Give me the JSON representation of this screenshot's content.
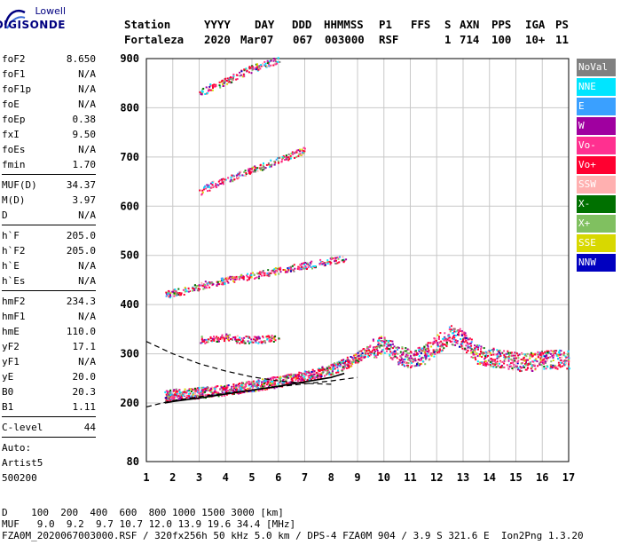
{
  "logo": {
    "line1": "Lowell",
    "line2": "DIGISONDE"
  },
  "header": {
    "labels": [
      "Station",
      "YYYY",
      "DAY",
      "DDD",
      "HHMMSS",
      "P1",
      "FFS",
      "S",
      "AXN",
      "PPS",
      "IGA",
      "PS"
    ],
    "values": [
      "Fortaleza",
      "2020",
      "Mar07",
      "067",
      "003000",
      "RSF",
      "1",
      "714",
      "100",
      "10+",
      "11"
    ]
  },
  "params": {
    "group1": [
      {
        "label": "foF2",
        "value": "8.650"
      },
      {
        "label": "foF1",
        "value": "N/A"
      },
      {
        "label": "foF1p",
        "value": "N/A"
      },
      {
        "label": "foE",
        "value": "N/A"
      },
      {
        "label": "foEp",
        "value": "0.38"
      },
      {
        "label": "fxI",
        "value": "9.50"
      },
      {
        "label": "foEs",
        "value": "N/A"
      },
      {
        "label": "fmin",
        "value": "1.70"
      }
    ],
    "group2": [
      {
        "label": "MUF(D)",
        "value": "34.37"
      },
      {
        "label": "M(D)",
        "value": "3.97"
      },
      {
        "label": "D",
        "value": "N/A"
      }
    ],
    "group3": [
      {
        "label": "h`F",
        "value": "205.0"
      },
      {
        "label": "h`F2",
        "value": "205.0"
      },
      {
        "label": "h`E",
        "value": "N/A"
      },
      {
        "label": "h`Es",
        "value": "N/A"
      }
    ],
    "group4": [
      {
        "label": "hmF2",
        "value": "234.3"
      },
      {
        "label": "hmF1",
        "value": "N/A"
      },
      {
        "label": "hmE",
        "value": "110.0"
      },
      {
        "label": "yF2",
        "value": "17.1"
      },
      {
        "label": "yF1",
        "value": "N/A"
      },
      {
        "label": "yE",
        "value": "20.0"
      },
      {
        "label": "B0",
        "value": "20.3"
      },
      {
        "label": "B1",
        "value": "1.11"
      }
    ],
    "clevel": {
      "label": "C-level",
      "value": "44"
    },
    "auto": [
      "Auto:",
      "Artist5",
      "500200"
    ]
  },
  "legend": [
    {
      "label": "NoVal",
      "color": "#808080"
    },
    {
      "label": "NNE",
      "color": "#00e5ff"
    },
    {
      "label": "E",
      "color": "#3aa0ff"
    },
    {
      "label": "W",
      "color": "#a000a0"
    },
    {
      "label": "Vo-",
      "color": "#ff3090"
    },
    {
      "label": "Vo+",
      "color": "#ff0030"
    },
    {
      "label": "SSW",
      "color": "#ffb0b0"
    },
    {
      "label": "X-",
      "color": "#007000"
    },
    {
      "label": "X+",
      "color": "#80c060"
    },
    {
      "label": "SSE",
      "color": "#d8d800"
    },
    {
      "label": "NNW",
      "color": "#0000c0"
    }
  ],
  "chart_data": {
    "type": "scatter",
    "xlim": [
      1,
      17
    ],
    "ylim": [
      80,
      900
    ],
    "x_ticks": [
      "1",
      "2",
      "3",
      "4",
      "5",
      "6",
      "7",
      "8",
      "9",
      "10",
      "11",
      "12",
      "13",
      "14",
      "15",
      "16",
      "17"
    ],
    "y_ticks": [
      "80",
      "200",
      "300",
      "400",
      "500",
      "600",
      "700",
      "800",
      "900"
    ],
    "grid": true,
    "series": [
      {
        "name": "F",
        "points": [
          [
            1.7,
            215
          ],
          [
            2.0,
            218
          ],
          [
            2.5,
            220
          ],
          [
            3.0,
            222
          ],
          [
            3.5,
            225
          ],
          [
            4.0,
            228
          ],
          [
            4.5,
            232
          ],
          [
            5.0,
            236
          ],
          [
            5.5,
            240
          ],
          [
            6.0,
            245
          ],
          [
            6.5,
            250
          ],
          [
            7.0,
            255
          ],
          [
            7.5,
            262
          ],
          [
            8.0,
            270
          ],
          [
            8.5,
            280
          ],
          [
            9.0,
            295
          ],
          [
            9.5,
            310
          ],
          [
            10.0,
            320
          ],
          [
            10.5,
            300
          ],
          [
            11.0,
            290
          ],
          [
            11.5,
            300
          ],
          [
            12.0,
            320
          ],
          [
            12.5,
            340
          ],
          [
            13.0,
            330
          ],
          [
            13.5,
            300
          ],
          [
            14.0,
            295
          ],
          [
            14.5,
            290
          ],
          [
            15.0,
            285
          ],
          [
            15.5,
            285
          ],
          [
            16.0,
            290
          ],
          [
            16.5,
            290
          ],
          [
            17.0,
            290
          ]
        ]
      },
      {
        "name": "2F",
        "points": [
          [
            1.7,
            420
          ],
          [
            2.0,
            425
          ],
          [
            2.5,
            430
          ],
          [
            3.0,
            438
          ],
          [
            3.5,
            445
          ],
          [
            4.0,
            450
          ],
          [
            4.5,
            455
          ],
          [
            5.0,
            460
          ],
          [
            5.5,
            465
          ],
          [
            6.0,
            470
          ],
          [
            6.5,
            475
          ],
          [
            7.0,
            480
          ],
          [
            7.5,
            485
          ],
          [
            8.0,
            490
          ],
          [
            8.5,
            495
          ]
        ]
      },
      {
        "name": "2F upper",
        "points": [
          [
            3.0,
            330
          ],
          [
            3.5,
            330
          ],
          [
            4.0,
            335
          ],
          [
            4.5,
            330
          ],
          [
            5.0,
            330
          ],
          [
            5.5,
            330
          ],
          [
            6.0,
            335
          ]
        ]
      },
      {
        "name": "3F",
        "points": [
          [
            3.0,
            630
          ],
          [
            3.5,
            645
          ],
          [
            4.0,
            655
          ],
          [
            4.5,
            665
          ],
          [
            5.0,
            675
          ],
          [
            5.5,
            685
          ],
          [
            6.0,
            695
          ],
          [
            6.5,
            705
          ],
          [
            7.0,
            715
          ]
        ]
      },
      {
        "name": "4F",
        "points": [
          [
            3.0,
            830
          ],
          [
            3.5,
            845
          ],
          [
            4.0,
            855
          ],
          [
            4.5,
            868
          ],
          [
            5.0,
            880
          ],
          [
            5.5,
            890
          ],
          [
            6.0,
            898
          ]
        ]
      }
    ],
    "curves": {
      "lower_dashed": [
        [
          1.0,
          192
        ],
        [
          2.0,
          205
        ],
        [
          4.0,
          220
        ],
        [
          6.0,
          233
        ],
        [
          8.0,
          245
        ],
        [
          9.0,
          252
        ]
      ],
      "upper_dashed": [
        [
          1.0,
          325
        ],
        [
          2.0,
          300
        ],
        [
          3.0,
          280
        ],
        [
          4.0,
          265
        ],
        [
          5.0,
          253
        ],
        [
          6.0,
          245
        ],
        [
          7.0,
          240
        ],
        [
          8.0,
          238
        ]
      ],
      "profile": [
        [
          1.7,
          200
        ],
        [
          2.0,
          203
        ],
        [
          3.0,
          210
        ],
        [
          4.0,
          218
        ],
        [
          5.0,
          226
        ],
        [
          6.0,
          234
        ],
        [
          7.0,
          243
        ],
        [
          8.0,
          252
        ],
        [
          8.5,
          260
        ]
      ]
    }
  },
  "footer": {
    "line1": "D    100  200  400  600  800 1000 1500 3000 [km]",
    "line2": "MUF   9.0  9.2  9.7 10.7 12.0 13.9 19.6 34.4 [MHz]",
    "line3": "FZA0M_2020067003000.RSF / 320fx256h 50 kHz 5.0 km / DPS-4 FZA0M 904 / 3.9 S 321.6 E  Ion2Png 1.3.20"
  }
}
